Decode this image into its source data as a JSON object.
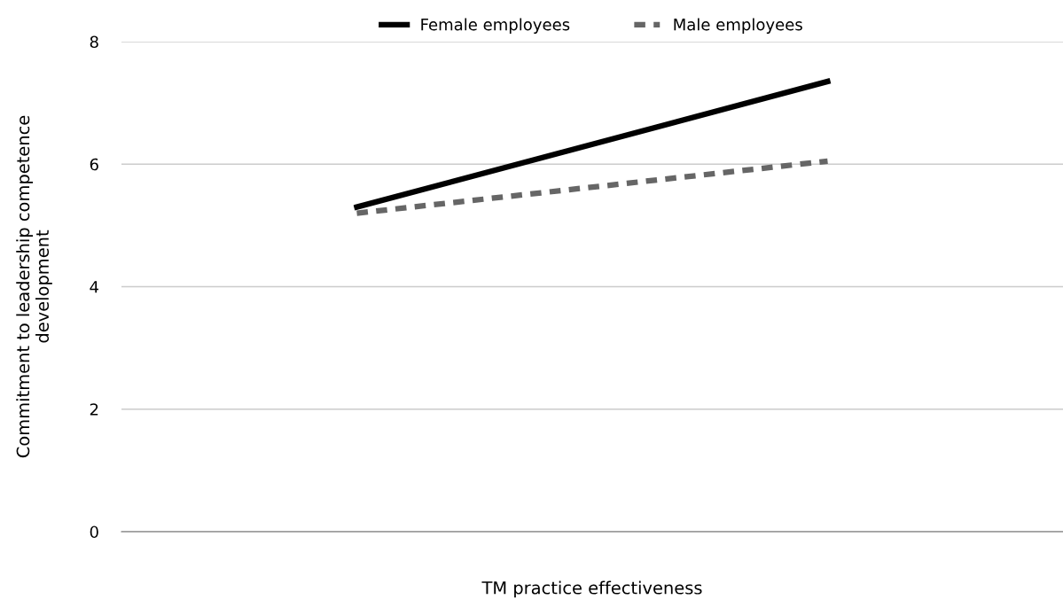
{
  "chart_data": {
    "type": "line",
    "xlabel": "TM practice effectiveness",
    "ylabel": "Commitment to leadership competence\ndevelopment",
    "categories": [
      null,
      null
    ],
    "series": [
      {
        "name": "Female employees",
        "color": "#000000",
        "values": [
          5.3,
          7.35
        ],
        "line_style": "solid"
      },
      {
        "name": "Male employees",
        "color": "#666666",
        "values": [
          5.2,
          6.05
        ],
        "line_style": "dashed"
      }
    ],
    "ylim": [
      0,
      8
    ],
    "yticks": [
      0,
      2,
      4,
      6,
      8
    ],
    "grid": "y",
    "legend": "top",
    "tick_labels": "y"
  }
}
